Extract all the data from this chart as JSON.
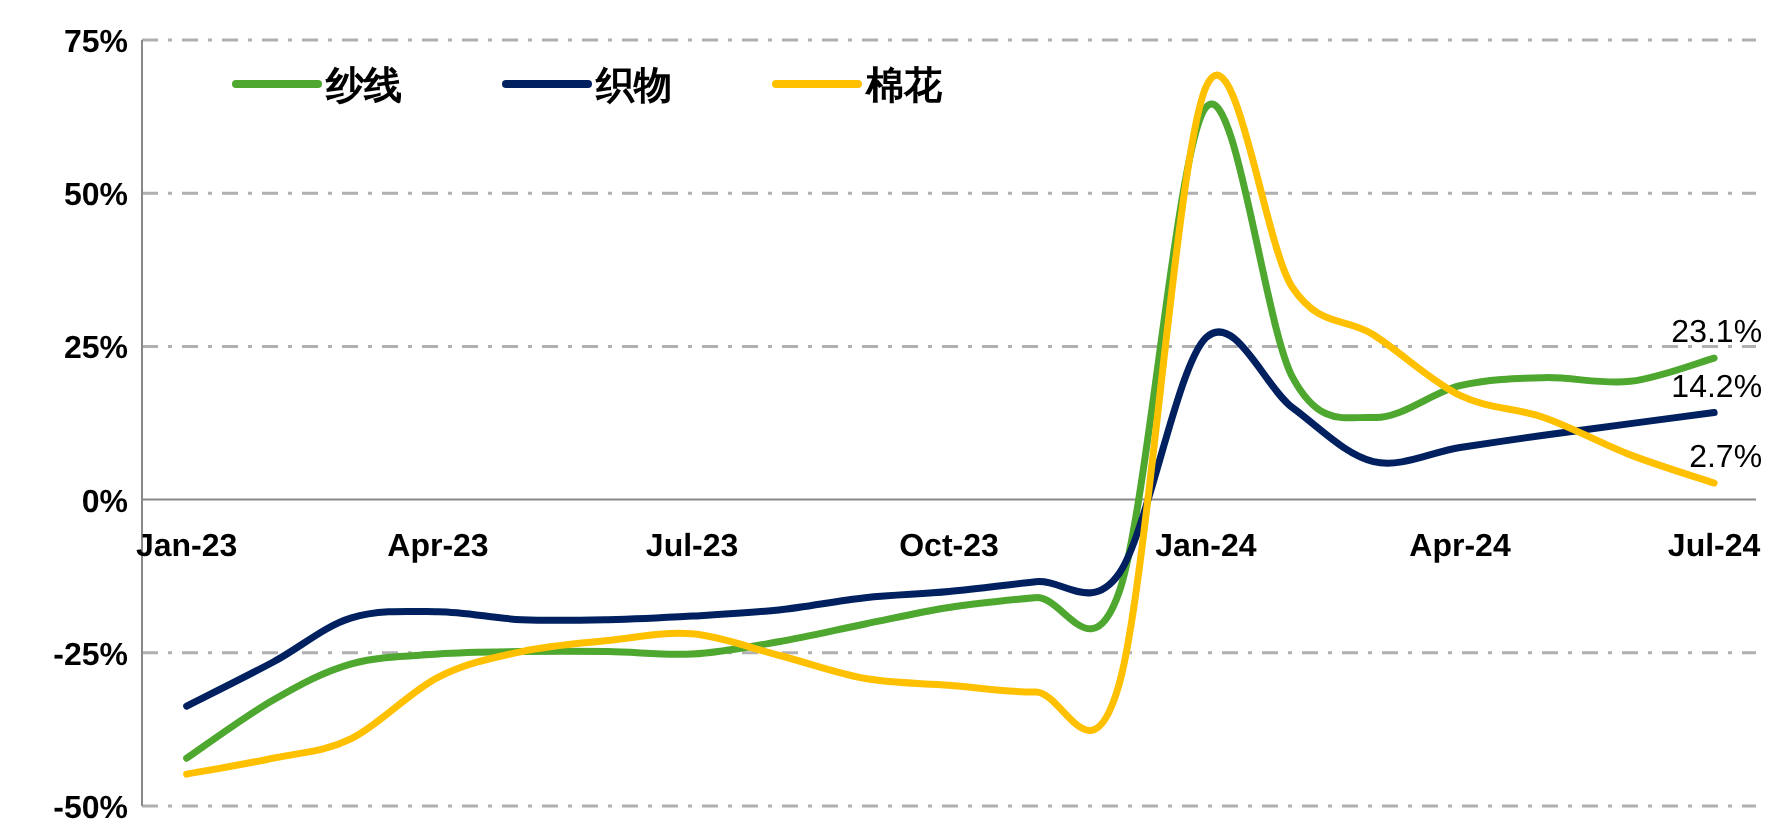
{
  "chart_data": {
    "type": "line",
    "x": [
      "2023-01",
      "2023-02",
      "2023-03",
      "2023-04",
      "2023-05",
      "2023-06",
      "2023-07",
      "2023-08",
      "2023-09",
      "2023-10",
      "2023-11",
      "2023-12",
      "2024-01",
      "2024-02",
      "2024-03",
      "2024-04",
      "2024-05",
      "2024-06",
      "2024-07"
    ],
    "series": [
      {
        "name": "纱线",
        "color": "#4ea72e",
        "values": [
          -42.2,
          -32.7,
          -26.8,
          -25.2,
          -24.8,
          -24.8,
          -25.2,
          -23.2,
          -20.3,
          -17.6,
          -16,
          -15,
          64,
          20,
          13.4,
          18.6,
          19.9,
          19.3,
          23.1
        ],
        "value_labels": [
          null,
          null,
          null,
          null,
          null,
          null,
          null,
          null,
          null,
          null,
          null,
          null,
          null,
          null,
          null,
          null,
          null,
          null,
          "23.1%"
        ]
      },
      {
        "name": "织物",
        "color": "#002060",
        "values": [
          -33.7,
          -26.5,
          -19.3,
          -18.3,
          -19.6,
          -19.6,
          -19,
          -18,
          -16,
          -15,
          -13.4,
          -12,
          26.4,
          15,
          6.2,
          8.5,
          10.5,
          12.4,
          14.2
        ],
        "value_labels": [
          null,
          null,
          null,
          null,
          null,
          null,
          null,
          null,
          null,
          null,
          null,
          null,
          null,
          null,
          null,
          null,
          null,
          null,
          "14.2%"
        ]
      },
      {
        "name": "棉花",
        "color": "#ffc000",
        "values": [
          -44.8,
          -42.2,
          -39,
          -29,
          -24.8,
          -23,
          -21.9,
          -25.4,
          -29.2,
          -30.3,
          -31.4,
          -30,
          67.3,
          34.6,
          26.9,
          17,
          13.4,
          7.3,
          2.7
        ],
        "value_labels": [
          null,
          null,
          null,
          null,
          null,
          null,
          null,
          null,
          null,
          null,
          null,
          null,
          null,
          null,
          null,
          null,
          null,
          null,
          "2.7%"
        ]
      }
    ],
    "xlim": [
      "2022-12-16",
      "2024-07-16"
    ],
    "xticks": [
      {
        "value": "2023-01",
        "label": "Jan-23"
      },
      {
        "value": "2023-04",
        "label": "Apr-23"
      },
      {
        "value": "2023-07",
        "label": "Jul-23"
      },
      {
        "value": "2023-10",
        "label": "Oct-23"
      },
      {
        "value": "2024-01",
        "label": "Jan-24"
      },
      {
        "value": "2024-04",
        "label": "Apr-24"
      },
      {
        "value": "2024-07",
        "label": "Jul-24"
      }
    ],
    "ylim": [
      -50,
      75
    ],
    "yticks": [
      {
        "value": -50,
        "label": "-50%"
      },
      {
        "value": -25,
        "label": "-25%"
      },
      {
        "value": 0,
        "label": "0%"
      },
      {
        "value": 25,
        "label": "25%"
      },
      {
        "value": 50,
        "label": "50%"
      },
      {
        "value": 75,
        "label": "75%"
      }
    ],
    "grid": "y",
    "legend": "top",
    "marker": "none",
    "line_style": "solid"
  }
}
